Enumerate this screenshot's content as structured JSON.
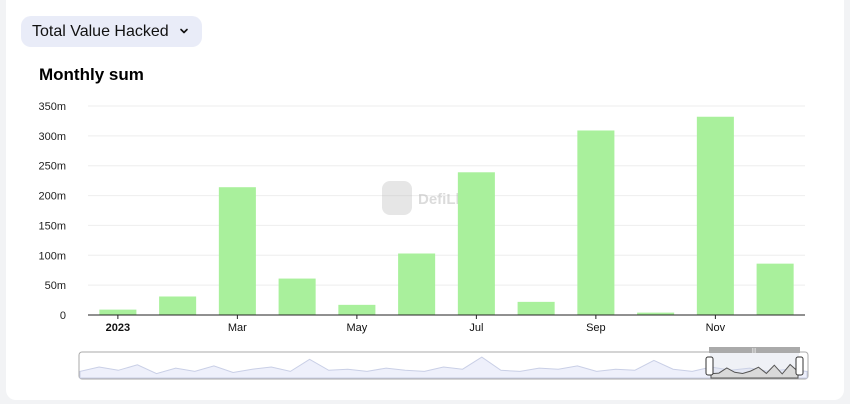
{
  "selector": {
    "label": "Total Value Hacked"
  },
  "watermark": {
    "text": "DefiLlama"
  },
  "colors": {
    "bar": "#a9f09c",
    "grid": "#eeeeee",
    "axis": "#222222",
    "slider": "#aaaaaa",
    "slider_fill": "#eef0fb"
  },
  "chart_data": {
    "type": "bar",
    "title": "Monthly sum",
    "categories": [
      "2023-01",
      "2023-02",
      "2023-03",
      "2023-04",
      "2023-05",
      "2023-06",
      "2023-07",
      "2023-08",
      "2023-09",
      "2023-10",
      "2023-11",
      "2023-12"
    ],
    "values": [
      9,
      31,
      214,
      61,
      17,
      103,
      239,
      22,
      309,
      4,
      332,
      86
    ],
    "unit": "m",
    "ylim": [
      0,
      350
    ],
    "yticks": [
      {
        "value": 0,
        "label": "0"
      },
      {
        "value": 50,
        "label": "50m"
      },
      {
        "value": 100,
        "label": "100m"
      },
      {
        "value": 150,
        "label": "150m"
      },
      {
        "value": 200,
        "label": "200m"
      },
      {
        "value": 250,
        "label": "250m"
      },
      {
        "value": 300,
        "label": "300m"
      },
      {
        "value": 350,
        "label": "350m"
      }
    ],
    "xticks": [
      {
        "index": 0,
        "label": "2023",
        "bold": true
      },
      {
        "index": 2,
        "label": "Mar"
      },
      {
        "index": 4,
        "label": "May"
      },
      {
        "index": 6,
        "label": "Jul"
      },
      {
        "index": 8,
        "label": "Sep"
      },
      {
        "index": 10,
        "label": "Nov"
      }
    ],
    "grid": true,
    "legend": "none"
  }
}
